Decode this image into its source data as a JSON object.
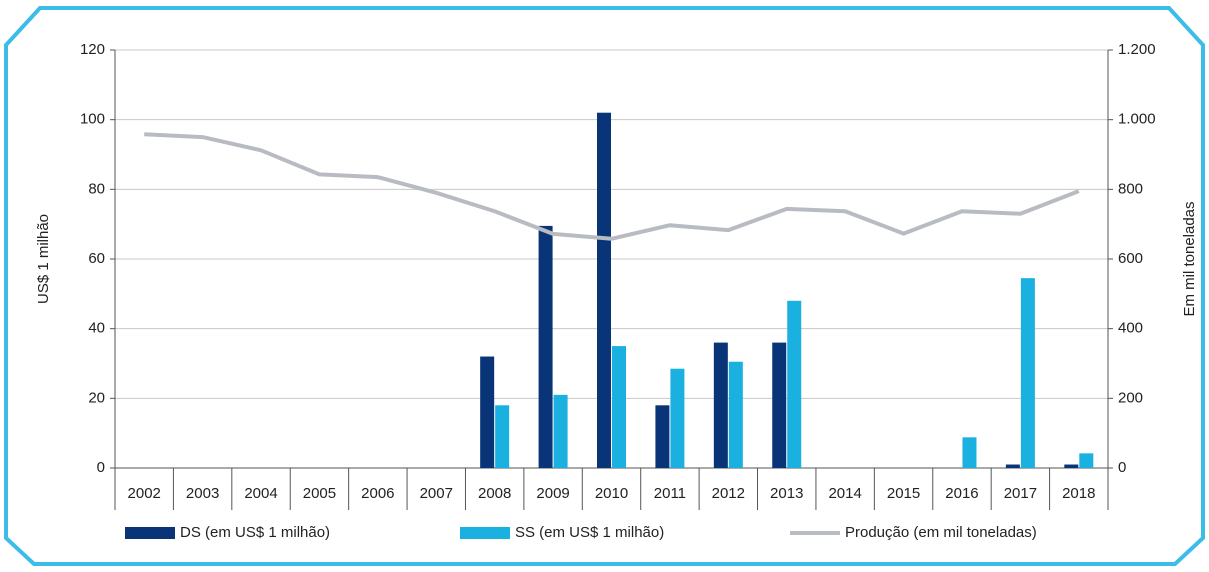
{
  "chart_data": {
    "type": "bar_line",
    "categories": [
      "2002",
      "2003",
      "2004",
      "2005",
      "2006",
      "2007",
      "2008",
      "2009",
      "2010",
      "2011",
      "2012",
      "2013",
      "2014",
      "2015",
      "2016",
      "2017",
      "2018"
    ],
    "series": [
      {
        "name": "DS (em US$ 1 milhão)",
        "color": "#0a3478",
        "values": [
          0,
          0,
          0,
          0,
          0,
          0,
          32,
          69.5,
          102,
          18,
          36,
          36,
          0,
          0,
          0,
          1,
          1
        ]
      },
      {
        "name": "SS (em US$ 1 milhão)",
        "color": "#1ab0e0",
        "values": [
          0,
          0,
          0,
          0,
          0,
          0,
          18,
          21,
          35,
          28.5,
          30.5,
          48,
          0,
          0,
          8.8,
          54.5,
          4.2
        ]
      },
      {
        "name": "Produção (em mil toneladas)",
        "color": "#b8bcc2",
        "axis": "y2",
        "type": "line",
        "values": [
          958,
          950,
          912,
          843,
          835,
          790,
          737,
          672,
          658,
          697,
          683,
          744,
          737,
          673,
          737,
          730,
          795
        ]
      }
    ],
    "ylabel": "US$ 1 milhão",
    "y2label": "Em mil toneladas",
    "ylim": [
      0,
      120
    ],
    "yticks": [
      0,
      20,
      40,
      60,
      80,
      100,
      120
    ],
    "y2lim": [
      0,
      1200
    ],
    "y2ticks": [
      0,
      200,
      400,
      600,
      800,
      {
        "value": 1000,
        "label": "1.000"
      },
      {
        "value": 1200,
        "label": "1.200"
      }
    ],
    "grid": true
  }
}
